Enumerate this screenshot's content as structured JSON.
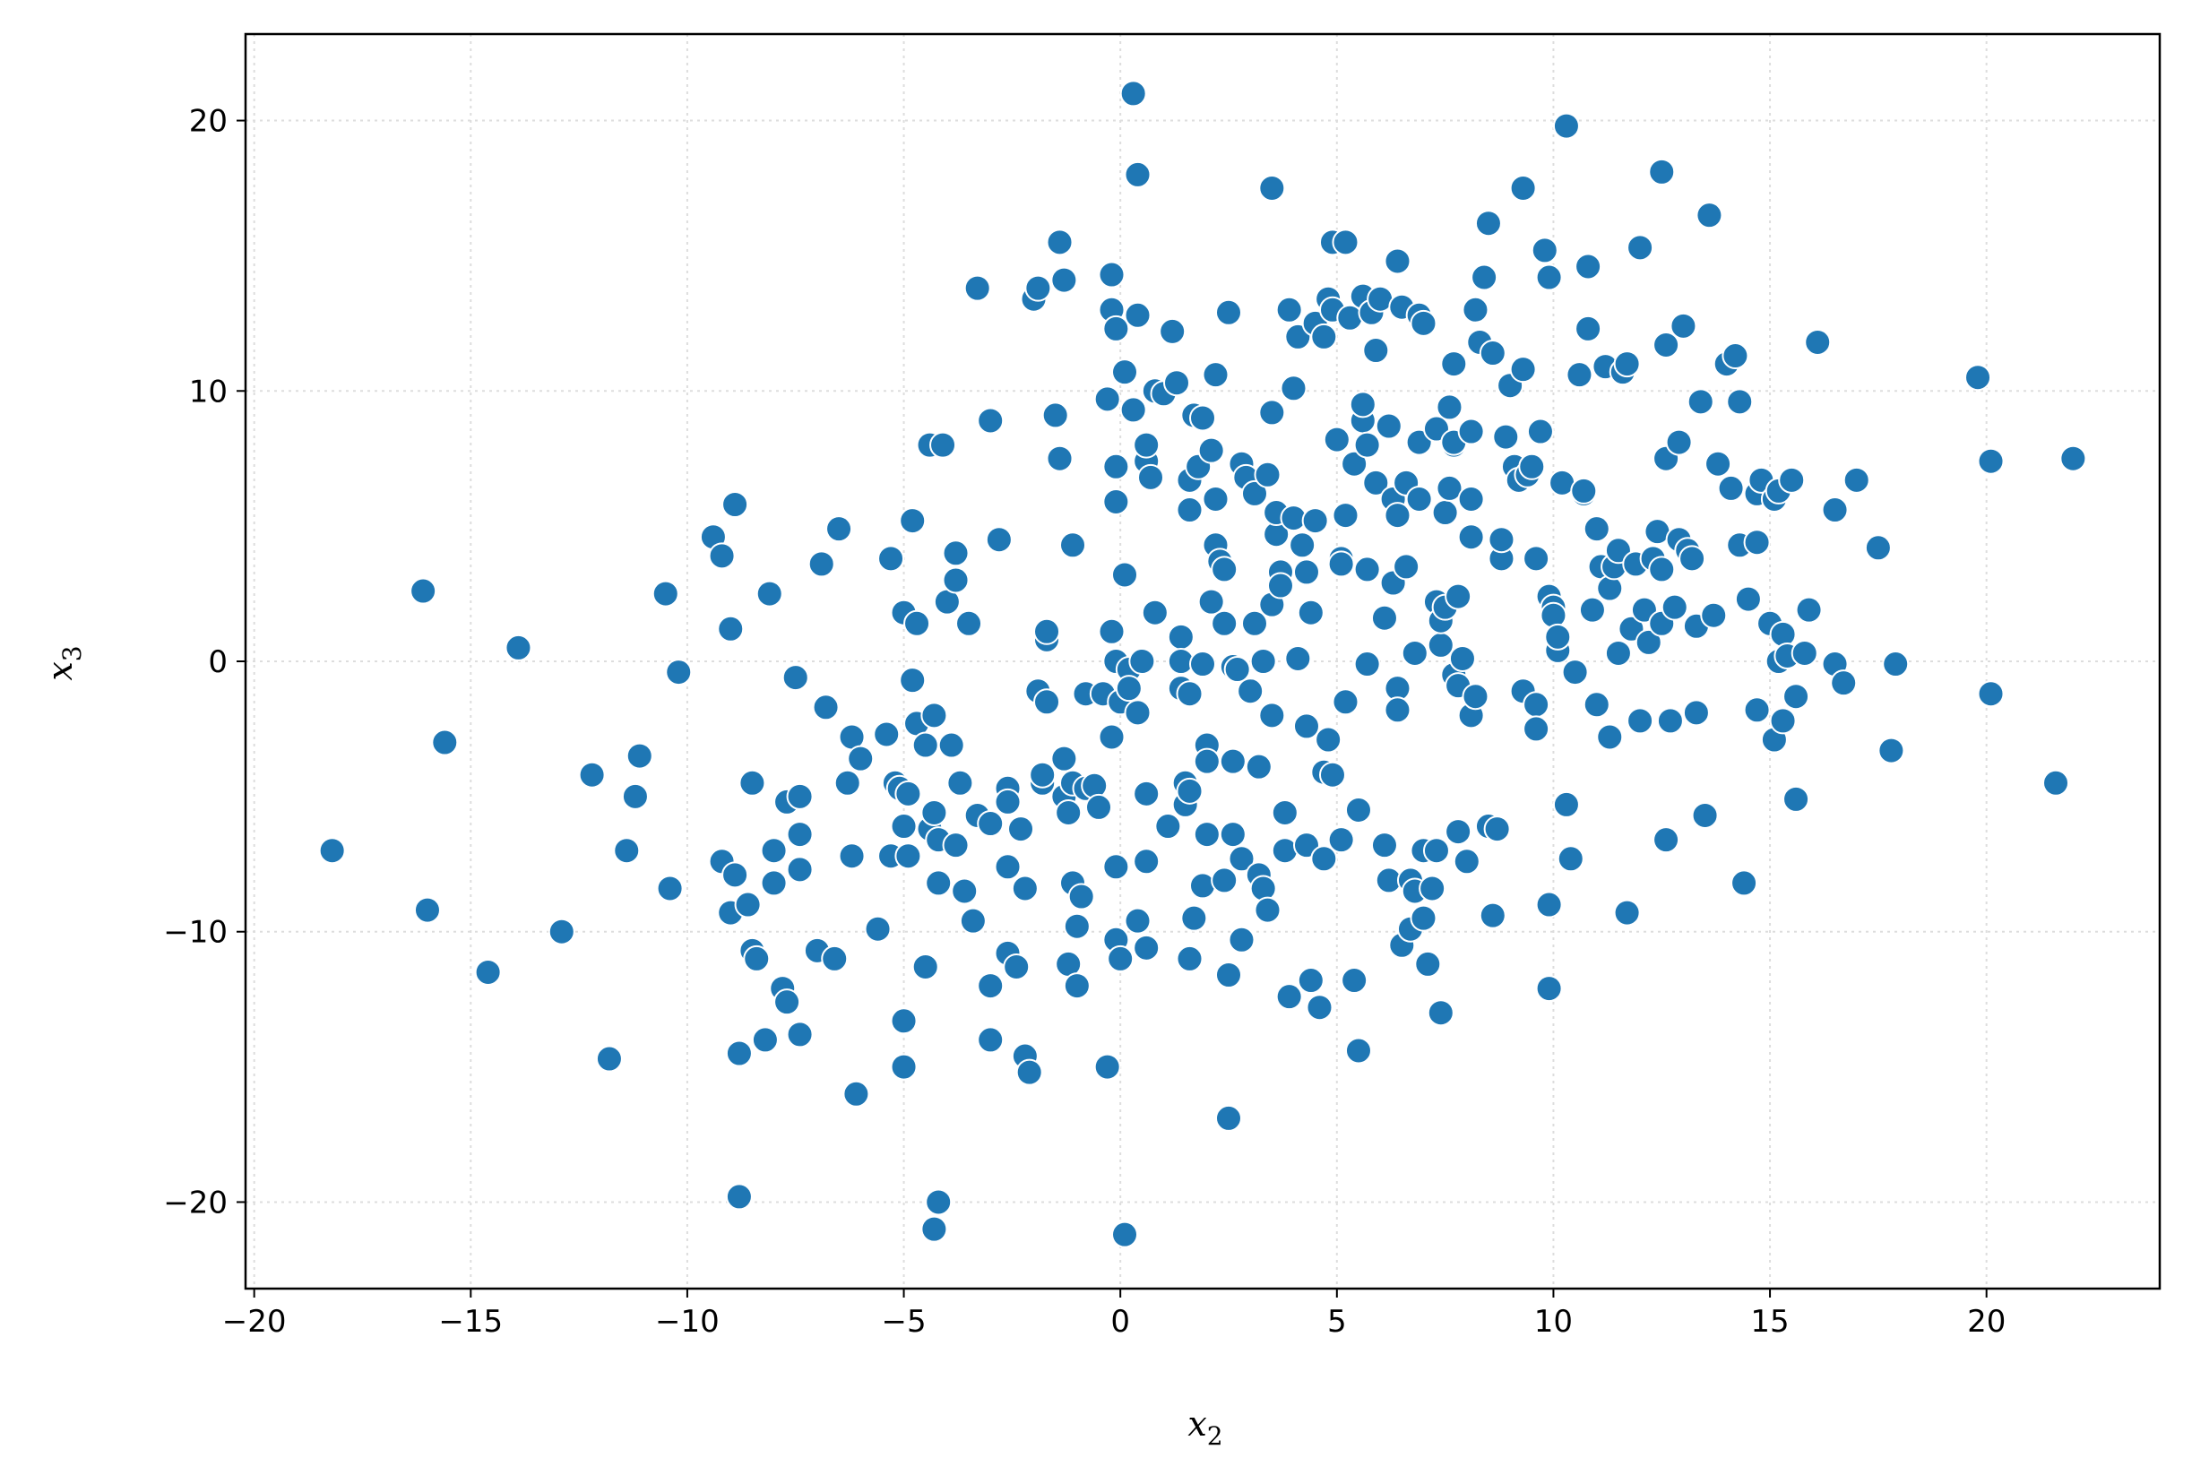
{
  "chart_data": {
    "type": "scatter",
    "title": "",
    "xlabel": {
      "base": "x",
      "sub": "2"
    },
    "ylabel": {
      "base": "x",
      "sub": "3"
    },
    "xlim": [
      -20.2,
      24.0
    ],
    "ylim": [
      -23.2,
      23.2
    ],
    "xticks": [
      -20,
      -15,
      -10,
      -5,
      0,
      5,
      10,
      15,
      20
    ],
    "yticks": [
      -20,
      -10,
      0,
      10,
      20
    ],
    "xtick_labels": [
      "−20",
      "−15",
      "−10",
      "−5",
      "0",
      "5",
      "10",
      "15",
      "20"
    ],
    "ytick_labels": [
      "−20",
      "−10",
      "0",
      "10",
      "20"
    ],
    "grid": true,
    "legend": "none",
    "marker_color": "#1f77b4",
    "marker_edge_color": "#ffffff",
    "points": [
      [
        -18.2,
        -7.0
      ],
      [
        -16.1,
        2.6
      ],
      [
        -16.0,
        -9.2
      ],
      [
        -15.6,
        -3.0
      ],
      [
        -14.6,
        -11.5
      ],
      [
        -13.9,
        0.5
      ],
      [
        -12.9,
        -10.0
      ],
      [
        -12.2,
        -4.2
      ],
      [
        -11.8,
        -14.7
      ],
      [
        -11.4,
        -7.0
      ],
      [
        -11.2,
        -5.0
      ],
      [
        -11.1,
        -3.5
      ],
      [
        -10.5,
        2.5
      ],
      [
        -10.4,
        -8.4
      ],
      [
        -10.2,
        -0.4
      ],
      [
        -9.4,
        4.6
      ],
      [
        -9.2,
        3.9
      ],
      [
        -9.2,
        -7.4
      ],
      [
        -9.0,
        -9.3
      ],
      [
        -9.0,
        1.2
      ],
      [
        -8.9,
        5.8
      ],
      [
        -8.9,
        -7.9
      ],
      [
        -8.8,
        -14.5
      ],
      [
        -8.8,
        -19.8
      ],
      [
        -8.6,
        -9.0
      ],
      [
        -8.5,
        -10.7
      ],
      [
        -8.5,
        -4.5
      ],
      [
        -8.4,
        -11.0
      ],
      [
        -8.2,
        -14.0
      ],
      [
        -8.1,
        2.5
      ],
      [
        -8.0,
        -8.2
      ],
      [
        -8.0,
        -7.0
      ],
      [
        -7.8,
        -12.1
      ],
      [
        -7.7,
        -12.6
      ],
      [
        -7.7,
        -5.2
      ],
      [
        -7.5,
        -0.6
      ],
      [
        -7.4,
        -5.0
      ],
      [
        -7.4,
        -7.7
      ],
      [
        -7.4,
        -13.8
      ],
      [
        -7.4,
        -6.4
      ],
      [
        -7.0,
        -10.7
      ],
      [
        -6.9,
        3.6
      ],
      [
        -6.8,
        -1.7
      ],
      [
        -6.6,
        -11.0
      ],
      [
        -6.5,
        4.9
      ],
      [
        -6.3,
        -4.5
      ],
      [
        -6.2,
        -7.2
      ],
      [
        -6.2,
        -2.8
      ],
      [
        -6.1,
        -16.0
      ],
      [
        -6.0,
        -3.6
      ],
      [
        -5.6,
        -9.9
      ],
      [
        -5.4,
        -2.7
      ],
      [
        -5.3,
        3.8
      ],
      [
        -5.3,
        -7.2
      ],
      [
        -5.2,
        -4.5
      ],
      [
        -5.1,
        -4.7
      ],
      [
        -5.0,
        1.8
      ],
      [
        -5.0,
        -6.1
      ],
      [
        -5.0,
        -13.3
      ],
      [
        -5.0,
        -15.0
      ],
      [
        -4.9,
        -4.9
      ],
      [
        -4.9,
        -7.2
      ],
      [
        -4.8,
        5.2
      ],
      [
        -4.8,
        -0.7
      ],
      [
        -4.7,
        -2.3
      ],
      [
        -4.7,
        1.4
      ],
      [
        -4.5,
        -11.3
      ],
      [
        -4.5,
        -3.1
      ],
      [
        -4.4,
        8.0
      ],
      [
        -4.4,
        -6.2
      ],
      [
        -4.3,
        -2.0
      ],
      [
        -4.3,
        -5.6
      ],
      [
        -4.3,
        -21.0
      ],
      [
        -4.2,
        -20.0
      ],
      [
        -4.2,
        -8.2
      ],
      [
        -4.2,
        -6.6
      ],
      [
        -4.1,
        8.0
      ],
      [
        -4.0,
        2.2
      ],
      [
        -3.9,
        -3.1
      ],
      [
        -3.8,
        4.0
      ],
      [
        -3.8,
        3.0
      ],
      [
        -3.8,
        -6.8
      ],
      [
        -3.7,
        -4.5
      ],
      [
        -3.6,
        -8.5
      ],
      [
        -3.5,
        1.4
      ],
      [
        -3.4,
        -9.6
      ],
      [
        -3.3,
        13.8
      ],
      [
        -3.3,
        -5.7
      ],
      [
        -3.0,
        8.9
      ],
      [
        -3.0,
        -6.0
      ],
      [
        -3.0,
        -12.0
      ],
      [
        -3.0,
        -14.0
      ],
      [
        -2.8,
        4.5
      ],
      [
        -2.6,
        -4.7
      ],
      [
        -2.6,
        -5.2
      ],
      [
        -2.6,
        -7.6
      ],
      [
        -2.6,
        -10.8
      ],
      [
        -2.4,
        -11.3
      ],
      [
        -2.3,
        -6.2
      ],
      [
        -2.2,
        -8.4
      ],
      [
        -2.2,
        -14.6
      ],
      [
        -2.1,
        -15.2
      ],
      [
        -2.0,
        13.4
      ],
      [
        -1.9,
        13.8
      ],
      [
        -1.9,
        -1.1
      ],
      [
        -1.8,
        -4.5
      ],
      [
        -1.8,
        -4.2
      ],
      [
        -1.7,
        -1.5
      ],
      [
        -1.7,
        0.8
      ],
      [
        -1.7,
        1.1
      ],
      [
        -1.5,
        9.1
      ],
      [
        -1.4,
        7.5
      ],
      [
        -1.4,
        15.5
      ],
      [
        -1.3,
        -3.6
      ],
      [
        -1.3,
        14.1
      ],
      [
        -1.3,
        -5.0
      ],
      [
        -1.2,
        -5.6
      ],
      [
        -1.2,
        -11.2
      ],
      [
        -1.1,
        4.3
      ],
      [
        -1.1,
        -4.5
      ],
      [
        -1.1,
        -8.2
      ],
      [
        -1.0,
        -9.8
      ],
      [
        -1.0,
        -12.0
      ],
      [
        -0.9,
        -8.7
      ],
      [
        -0.8,
        -1.2
      ],
      [
        -0.8,
        -4.7
      ],
      [
        -0.6,
        -4.6
      ],
      [
        -0.5,
        -5.4
      ],
      [
        -0.4,
        -1.2
      ],
      [
        -0.3,
        -15.0
      ],
      [
        -0.3,
        9.7
      ],
      [
        -0.2,
        14.3
      ],
      [
        -0.2,
        13.0
      ],
      [
        -0.2,
        1.1
      ],
      [
        -0.2,
        -2.8
      ],
      [
        -0.1,
        -7.6
      ],
      [
        -0.1,
        -10.3
      ],
      [
        -0.1,
        12.3
      ],
      [
        -0.1,
        5.9
      ],
      [
        -0.1,
        7.2
      ],
      [
        -0.1,
        0.0
      ],
      [
        0.0,
        -11.0
      ],
      [
        0.0,
        -1.5
      ],
      [
        0.1,
        3.2
      ],
      [
        0.1,
        10.7
      ],
      [
        0.1,
        -21.2
      ],
      [
        0.2,
        -0.3
      ],
      [
        0.2,
        -1.0
      ],
      [
        0.3,
        21.0
      ],
      [
        0.3,
        9.3
      ],
      [
        0.4,
        18.0
      ],
      [
        0.4,
        12.8
      ],
      [
        0.4,
        -9.6
      ],
      [
        0.4,
        -1.9
      ],
      [
        0.5,
        0.0
      ],
      [
        0.6,
        -10.6
      ],
      [
        0.6,
        -7.4
      ],
      [
        0.6,
        -4.9
      ],
      [
        0.6,
        7.4
      ],
      [
        0.6,
        8.0
      ],
      [
        0.7,
        6.8
      ],
      [
        0.8,
        10.0
      ],
      [
        0.8,
        1.8
      ],
      [
        1.0,
        9.9
      ],
      [
        1.1,
        -6.1
      ],
      [
        1.2,
        12.2
      ],
      [
        1.3,
        10.3
      ],
      [
        1.4,
        0.9
      ],
      [
        1.4,
        0.0
      ],
      [
        1.4,
        -1.0
      ],
      [
        1.5,
        -5.3
      ],
      [
        1.5,
        -4.5
      ],
      [
        1.6,
        -11.0
      ],
      [
        1.6,
        6.7
      ],
      [
        1.6,
        5.6
      ],
      [
        1.6,
        -4.8
      ],
      [
        1.6,
        -1.2
      ],
      [
        1.7,
        9.1
      ],
      [
        1.7,
        -9.5
      ],
      [
        1.8,
        7.2
      ],
      [
        1.9,
        -0.1
      ],
      [
        1.9,
        -8.3
      ],
      [
        1.9,
        9.0
      ],
      [
        2.0,
        -6.4
      ],
      [
        2.0,
        -3.1
      ],
      [
        2.0,
        -3.7
      ],
      [
        2.1,
        7.8
      ],
      [
        2.1,
        2.2
      ],
      [
        2.2,
        4.3
      ],
      [
        2.2,
        10.6
      ],
      [
        2.2,
        6.0
      ],
      [
        2.3,
        3.7
      ],
      [
        2.4,
        3.4
      ],
      [
        2.4,
        -8.1
      ],
      [
        2.4,
        1.4
      ],
      [
        2.5,
        12.9
      ],
      [
        2.5,
        -11.6
      ],
      [
        2.5,
        -16.9
      ],
      [
        2.6,
        -0.2
      ],
      [
        2.6,
        -6.4
      ],
      [
        2.6,
        -3.7
      ],
      [
        2.7,
        -0.3
      ],
      [
        2.8,
        7.3
      ],
      [
        2.8,
        -7.3
      ],
      [
        2.8,
        -10.3
      ],
      [
        2.9,
        6.8
      ],
      [
        3.0,
        -1.1
      ],
      [
        3.1,
        6.2
      ],
      [
        3.1,
        1.4
      ],
      [
        3.2,
        -3.9
      ],
      [
        3.2,
        -7.9
      ],
      [
        3.3,
        0.0
      ],
      [
        3.3,
        -8.4
      ],
      [
        3.4,
        6.9
      ],
      [
        3.4,
        -9.2
      ],
      [
        3.5,
        -2.0
      ],
      [
        3.5,
        2.1
      ],
      [
        3.5,
        17.5
      ],
      [
        3.5,
        9.2
      ],
      [
        3.6,
        4.7
      ],
      [
        3.6,
        5.5
      ],
      [
        3.7,
        3.3
      ],
      [
        3.7,
        2.8
      ],
      [
        3.8,
        -7.0
      ],
      [
        3.8,
        -5.6
      ],
      [
        3.9,
        13.0
      ],
      [
        3.9,
        -12.4
      ],
      [
        4.0,
        10.1
      ],
      [
        4.0,
        5.3
      ],
      [
        4.1,
        0.1
      ],
      [
        4.1,
        12.0
      ],
      [
        4.2,
        4.3
      ],
      [
        4.3,
        -6.8
      ],
      [
        4.3,
        3.3
      ],
      [
        4.3,
        -2.4
      ],
      [
        4.4,
        -11.8
      ],
      [
        4.4,
        1.8
      ],
      [
        4.5,
        5.2
      ],
      [
        4.5,
        12.5
      ],
      [
        4.6,
        -12.8
      ],
      [
        4.7,
        -7.3
      ],
      [
        4.7,
        -4.1
      ],
      [
        4.7,
        12.0
      ],
      [
        4.8,
        13.4
      ],
      [
        4.8,
        -2.9
      ],
      [
        4.9,
        15.5
      ],
      [
        4.9,
        -4.2
      ],
      [
        4.9,
        13.0
      ],
      [
        5.0,
        8.2
      ],
      [
        5.1,
        3.8
      ],
      [
        5.1,
        3.6
      ],
      [
        5.1,
        -6.6
      ],
      [
        5.2,
        15.5
      ],
      [
        5.2,
        5.4
      ],
      [
        5.2,
        -1.5
      ],
      [
        5.3,
        12.7
      ],
      [
        5.4,
        -11.8
      ],
      [
        5.4,
        7.3
      ],
      [
        5.5,
        -5.5
      ],
      [
        5.5,
        -14.4
      ],
      [
        5.6,
        13.5
      ],
      [
        5.6,
        8.9
      ],
      [
        5.6,
        9.5
      ],
      [
        5.7,
        8.0
      ],
      [
        5.7,
        -0.1
      ],
      [
        5.7,
        3.4
      ],
      [
        5.8,
        12.9
      ],
      [
        5.9,
        11.5
      ],
      [
        5.9,
        6.6
      ],
      [
        6.0,
        13.4
      ],
      [
        6.1,
        1.6
      ],
      [
        6.1,
        -6.8
      ],
      [
        6.2,
        -8.1
      ],
      [
        6.2,
        8.7
      ],
      [
        6.3,
        2.9
      ],
      [
        6.3,
        6.0
      ],
      [
        6.4,
        -1.0
      ],
      [
        6.4,
        14.8
      ],
      [
        6.4,
        5.4
      ],
      [
        6.4,
        -1.8
      ],
      [
        6.5,
        13.1
      ],
      [
        6.5,
        -10.5
      ],
      [
        6.6,
        3.5
      ],
      [
        6.6,
        6.6
      ],
      [
        6.7,
        -8.1
      ],
      [
        6.7,
        -9.9
      ],
      [
        6.8,
        0.3
      ],
      [
        6.8,
        -8.5
      ],
      [
        6.9,
        12.8
      ],
      [
        6.9,
        6.0
      ],
      [
        6.9,
        8.1
      ],
      [
        7.0,
        -7.0
      ],
      [
        7.0,
        -9.5
      ],
      [
        7.0,
        12.5
      ],
      [
        7.1,
        -11.2
      ],
      [
        7.2,
        -8.4
      ],
      [
        7.3,
        8.6
      ],
      [
        7.3,
        2.2
      ],
      [
        7.3,
        -7.0
      ],
      [
        7.4,
        0.6
      ],
      [
        7.4,
        1.5
      ],
      [
        7.4,
        -13.0
      ],
      [
        7.5,
        5.5
      ],
      [
        7.5,
        2.0
      ],
      [
        7.6,
        9.4
      ],
      [
        7.6,
        6.4
      ],
      [
        7.7,
        8.0
      ],
      [
        7.7,
        -0.5
      ],
      [
        7.7,
        11.0
      ],
      [
        7.7,
        8.1
      ],
      [
        7.8,
        -6.3
      ],
      [
        7.8,
        -0.9
      ],
      [
        7.8,
        -6.3
      ],
      [
        7.8,
        2.4
      ],
      [
        7.9,
        0.1
      ],
      [
        8.0,
        -7.4
      ],
      [
        8.1,
        8.5
      ],
      [
        8.1,
        4.6
      ],
      [
        8.1,
        -2.0
      ],
      [
        8.1,
        6.0
      ],
      [
        8.2,
        13.0
      ],
      [
        8.2,
        -1.3
      ],
      [
        8.3,
        11.8
      ],
      [
        8.4,
        14.2
      ],
      [
        8.5,
        16.2
      ],
      [
        8.5,
        -6.1
      ],
      [
        8.6,
        -9.4
      ],
      [
        8.6,
        11.4
      ],
      [
        8.7,
        -6.2
      ],
      [
        8.8,
        3.8
      ],
      [
        8.8,
        4.5
      ],
      [
        8.9,
        8.3
      ],
      [
        9.0,
        10.2
      ],
      [
        9.1,
        7.2
      ],
      [
        9.2,
        6.7
      ],
      [
        9.3,
        -1.1
      ],
      [
        9.3,
        17.5
      ],
      [
        9.3,
        10.8
      ],
      [
        9.4,
        6.9
      ],
      [
        9.5,
        7.2
      ],
      [
        9.6,
        -1.6
      ],
      [
        9.6,
        -2.5
      ],
      [
        9.6,
        3.8
      ],
      [
        9.7,
        8.5
      ],
      [
        9.8,
        15.2
      ],
      [
        9.9,
        -9.0
      ],
      [
        9.9,
        -12.1
      ],
      [
        9.9,
        2.4
      ],
      [
        9.9,
        14.2
      ],
      [
        10.0,
        2.0
      ],
      [
        10.0,
        1.7
      ],
      [
        10.1,
        0.4
      ],
      [
        10.1,
        0.9
      ],
      [
        10.2,
        6.6
      ],
      [
        10.3,
        19.8
      ],
      [
        10.3,
        -5.3
      ],
      [
        10.4,
        -7.3
      ],
      [
        10.5,
        -0.4
      ],
      [
        10.6,
        10.6
      ],
      [
        10.7,
        6.2
      ],
      [
        10.7,
        6.3
      ],
      [
        10.8,
        14.6
      ],
      [
        10.8,
        12.3
      ],
      [
        10.9,
        1.9
      ],
      [
        11.0,
        -1.6
      ],
      [
        11.0,
        4.9
      ],
      [
        11.1,
        3.5
      ],
      [
        11.2,
        10.9
      ],
      [
        11.3,
        -2.8
      ],
      [
        11.3,
        2.7
      ],
      [
        11.4,
        3.5
      ],
      [
        11.5,
        0.3
      ],
      [
        11.5,
        4.1
      ],
      [
        11.6,
        10.7
      ],
      [
        11.7,
        -9.3
      ],
      [
        11.7,
        11.0
      ],
      [
        11.8,
        1.2
      ],
      [
        11.9,
        3.6
      ],
      [
        12.0,
        15.3
      ],
      [
        12.0,
        -2.2
      ],
      [
        12.1,
        1.9
      ],
      [
        12.2,
        0.7
      ],
      [
        12.3,
        3.8
      ],
      [
        12.4,
        4.8
      ],
      [
        12.5,
        18.1
      ],
      [
        12.5,
        3.4
      ],
      [
        12.5,
        1.4
      ],
      [
        12.6,
        -6.6
      ],
      [
        12.6,
        7.5
      ],
      [
        12.6,
        11.7
      ],
      [
        12.7,
        -2.2
      ],
      [
        12.8,
        2.0
      ],
      [
        12.9,
        8.1
      ],
      [
        12.9,
        4.5
      ],
      [
        13.0,
        12.4
      ],
      [
        13.1,
        4.1
      ],
      [
        13.2,
        3.8
      ],
      [
        13.3,
        1.3
      ],
      [
        13.3,
        -1.9
      ],
      [
        13.4,
        9.6
      ],
      [
        13.5,
        -5.7
      ],
      [
        13.6,
        16.5
      ],
      [
        13.7,
        1.7
      ],
      [
        13.8,
        7.3
      ],
      [
        14.0,
        11.0
      ],
      [
        14.1,
        6.4
      ],
      [
        14.2,
        11.3
      ],
      [
        14.3,
        4.3
      ],
      [
        14.3,
        9.6
      ],
      [
        14.4,
        -8.2
      ],
      [
        14.5,
        2.3
      ],
      [
        14.7,
        6.2
      ],
      [
        14.7,
        4.4
      ],
      [
        14.7,
        -1.8
      ],
      [
        14.8,
        6.7
      ],
      [
        15.0,
        1.4
      ],
      [
        15.1,
        6.0
      ],
      [
        15.1,
        -2.9
      ],
      [
        15.2,
        6.3
      ],
      [
        15.2,
        0.0
      ],
      [
        15.3,
        -2.2
      ],
      [
        15.3,
        1.0
      ],
      [
        15.4,
        0.2
      ],
      [
        15.5,
        6.7
      ],
      [
        15.6,
        -5.1
      ],
      [
        15.6,
        -1.3
      ],
      [
        15.8,
        0.3
      ],
      [
        15.9,
        1.9
      ],
      [
        16.1,
        11.8
      ],
      [
        16.5,
        5.6
      ],
      [
        16.5,
        -0.1
      ],
      [
        16.7,
        -0.8
      ],
      [
        17.0,
        6.7
      ],
      [
        17.5,
        4.2
      ],
      [
        17.8,
        -3.3
      ],
      [
        17.9,
        -0.1
      ],
      [
        19.8,
        10.5
      ],
      [
        20.1,
        -1.2
      ],
      [
        20.1,
        7.4
      ],
      [
        21.6,
        -4.5
      ],
      [
        22.0,
        7.5
      ]
    ]
  }
}
